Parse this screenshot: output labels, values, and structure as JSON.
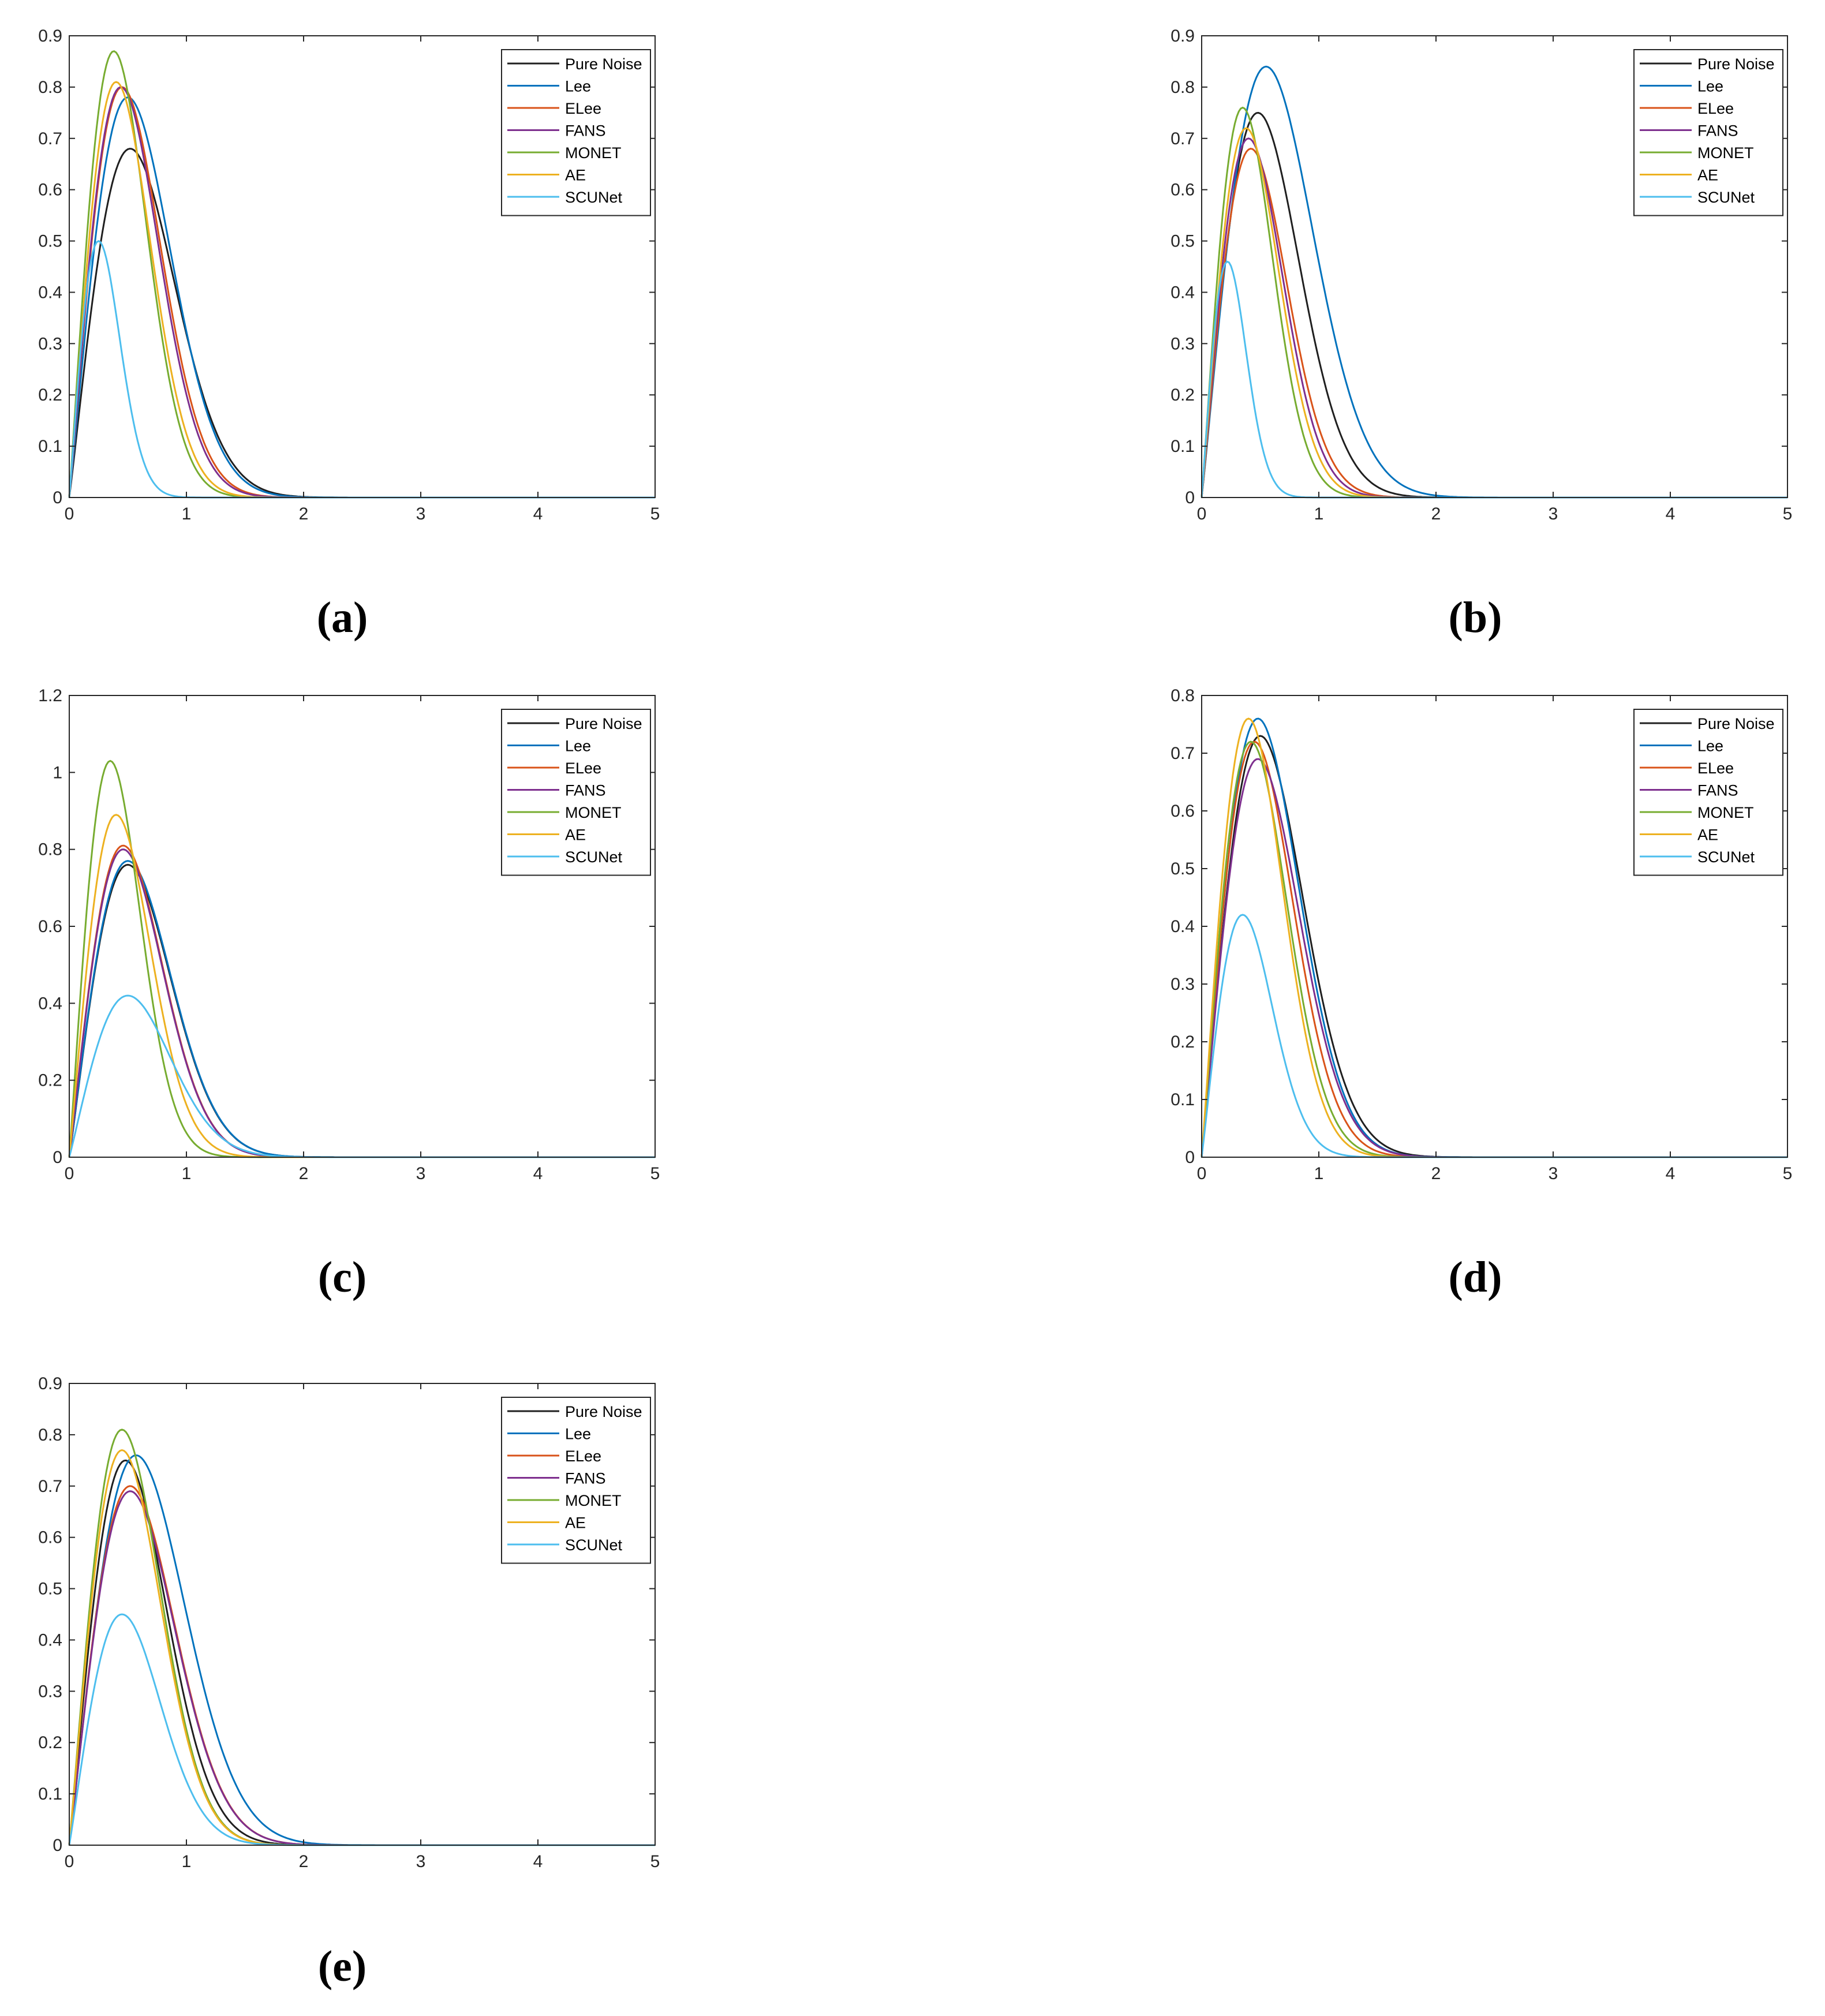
{
  "figure": {
    "legend_entries": [
      "Pure Noise",
      "Lee",
      "ELee",
      "FANS",
      "MONET",
      "AE",
      "SCUNet"
    ]
  },
  "series_colors": {
    "Pure Noise": "#1f1f1f",
    "Lee": "#0072bd",
    "ELee": "#d95319",
    "FANS": "#7e2f8e",
    "MONET": "#77ac30",
    "AE": "#edb120",
    "SCUNet": "#4dbeee"
  },
  "chart_data": [
    {
      "type": "line",
      "caption": "(a)",
      "x_range": [
        0,
        5
      ],
      "xlim": [
        0,
        5
      ],
      "ylim": [
        0,
        0.9
      ],
      "xticks": [
        0,
        1,
        2,
        3,
        4,
        5
      ],
      "yticks": [
        0,
        0.1,
        0.2,
        0.3,
        0.4,
        0.5,
        0.6,
        0.7,
        0.8,
        0.9
      ],
      "legend_position": "top-right",
      "grid": false,
      "series": [
        {
          "name": "Pure Noise",
          "peak_x": 0.52,
          "peak_y": 0.68
        },
        {
          "name": "Lee",
          "peak_x": 0.5,
          "peak_y": 0.78
        },
        {
          "name": "ELee",
          "peak_x": 0.45,
          "peak_y": 0.8
        },
        {
          "name": "FANS",
          "peak_x": 0.44,
          "peak_y": 0.8
        },
        {
          "name": "MONET",
          "peak_x": 0.38,
          "peak_y": 0.87
        },
        {
          "name": "AE",
          "peak_x": 0.4,
          "peak_y": 0.81
        },
        {
          "name": "SCUNet",
          "peak_x": 0.25,
          "peak_y": 0.5
        }
      ]
    },
    {
      "type": "line",
      "caption": "(b)",
      "x_range": [
        0,
        5
      ],
      "xlim": [
        0,
        5
      ],
      "ylim": [
        0,
        0.9
      ],
      "xticks": [
        0,
        1,
        2,
        3,
        4,
        5
      ],
      "yticks": [
        0,
        0.1,
        0.2,
        0.3,
        0.4,
        0.5,
        0.6,
        0.7,
        0.8,
        0.9
      ],
      "legend_position": "top-right",
      "grid": false,
      "series": [
        {
          "name": "Pure Noise",
          "peak_x": 0.48,
          "peak_y": 0.75
        },
        {
          "name": "Lee",
          "peak_x": 0.55,
          "peak_y": 0.84
        },
        {
          "name": "ELee",
          "peak_x": 0.42,
          "peak_y": 0.68
        },
        {
          "name": "FANS",
          "peak_x": 0.4,
          "peak_y": 0.7
        },
        {
          "name": "MONET",
          "peak_x": 0.35,
          "peak_y": 0.76
        },
        {
          "name": "AE",
          "peak_x": 0.38,
          "peak_y": 0.72
        },
        {
          "name": "SCUNet",
          "peak_x": 0.22,
          "peak_y": 0.46
        }
      ]
    },
    {
      "type": "line",
      "caption": "(c)",
      "x_range": [
        0,
        5
      ],
      "xlim": [
        0,
        5
      ],
      "ylim": [
        0,
        1.2
      ],
      "xticks": [
        0,
        1,
        2,
        3,
        4,
        5
      ],
      "yticks": [
        0,
        0.2,
        0.4,
        0.6,
        0.8,
        1,
        1.2
      ],
      "legend_position": "top-right",
      "grid": false,
      "series": [
        {
          "name": "Pure Noise",
          "peak_x": 0.5,
          "peak_y": 0.76
        },
        {
          "name": "Lee",
          "peak_x": 0.5,
          "peak_y": 0.77
        },
        {
          "name": "ELee",
          "peak_x": 0.46,
          "peak_y": 0.81
        },
        {
          "name": "FANS",
          "peak_x": 0.46,
          "peak_y": 0.8
        },
        {
          "name": "MONET",
          "peak_x": 0.35,
          "peak_y": 1.03
        },
        {
          "name": "AE",
          "peak_x": 0.4,
          "peak_y": 0.89
        },
        {
          "name": "SCUNet",
          "peak_x": 0.5,
          "peak_y": 0.42
        }
      ]
    },
    {
      "type": "line",
      "caption": "(d)",
      "x_range": [
        0,
        5
      ],
      "xlim": [
        0,
        5
      ],
      "ylim": [
        0,
        0.8
      ],
      "xticks": [
        0,
        1,
        2,
        3,
        4,
        5
      ],
      "yticks": [
        0,
        0.1,
        0.2,
        0.3,
        0.4,
        0.5,
        0.6,
        0.7,
        0.8
      ],
      "legend_position": "top-right",
      "grid": false,
      "series": [
        {
          "name": "Pure Noise",
          "peak_x": 0.5,
          "peak_y": 0.73
        },
        {
          "name": "Lee",
          "peak_x": 0.48,
          "peak_y": 0.76
        },
        {
          "name": "ELee",
          "peak_x": 0.45,
          "peak_y": 0.72
        },
        {
          "name": "FANS",
          "peak_x": 0.48,
          "peak_y": 0.69
        },
        {
          "name": "MONET",
          "peak_x": 0.42,
          "peak_y": 0.72
        },
        {
          "name": "AE",
          "peak_x": 0.4,
          "peak_y": 0.76
        },
        {
          "name": "SCUNet",
          "peak_x": 0.35,
          "peak_y": 0.42
        }
      ]
    },
    {
      "type": "line",
      "caption": "(e)",
      "x_range": [
        0,
        5
      ],
      "xlim": [
        0,
        5
      ],
      "ylim": [
        0,
        0.9
      ],
      "xticks": [
        0,
        1,
        2,
        3,
        4,
        5
      ],
      "yticks": [
        0,
        0.1,
        0.2,
        0.3,
        0.4,
        0.5,
        0.6,
        0.7,
        0.8,
        0.9
      ],
      "legend_position": "top-right",
      "grid": false,
      "series": [
        {
          "name": "Pure Noise",
          "peak_x": 0.48,
          "peak_y": 0.75
        },
        {
          "name": "Lee",
          "peak_x": 0.57,
          "peak_y": 0.76
        },
        {
          "name": "ELee",
          "peak_x": 0.52,
          "peak_y": 0.7
        },
        {
          "name": "FANS",
          "peak_x": 0.52,
          "peak_y": 0.69
        },
        {
          "name": "MONET",
          "peak_x": 0.45,
          "peak_y": 0.81
        },
        {
          "name": "AE",
          "peak_x": 0.45,
          "peak_y": 0.77
        },
        {
          "name": "SCUNet",
          "peak_x": 0.45,
          "peak_y": 0.45
        }
      ]
    }
  ]
}
